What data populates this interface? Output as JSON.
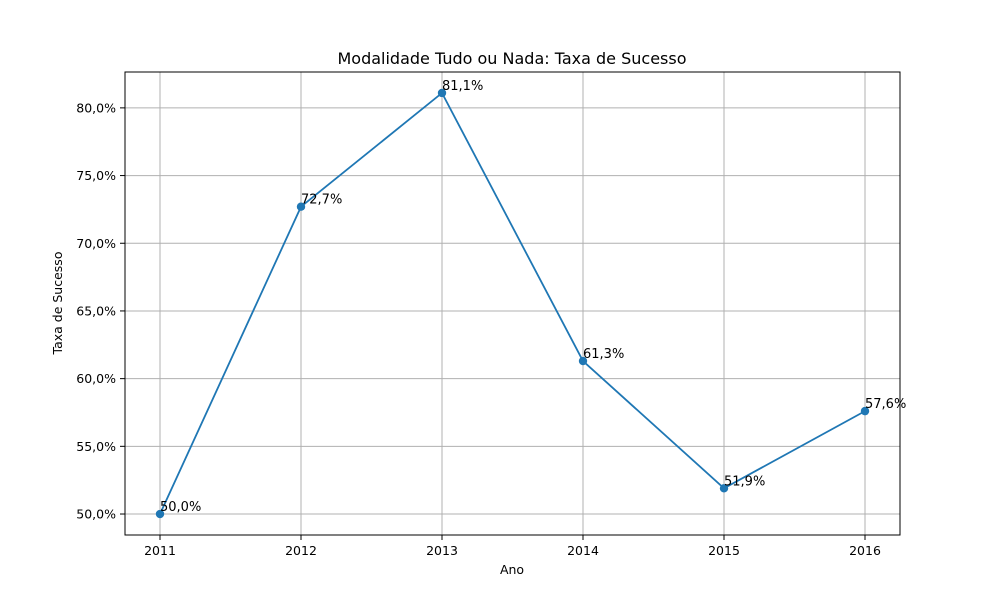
{
  "chart_data": {
    "type": "line",
    "title": "Modalidade Tudo ou Nada: Taxa de Sucesso",
    "xlabel": "Ano",
    "ylabel": "Taxa de Sucesso",
    "categories": [
      "2011",
      "2012",
      "2013",
      "2014",
      "2015",
      "2016"
    ],
    "series": [
      {
        "values": [
          50.0,
          72.7,
          81.1,
          61.3,
          51.9,
          57.6
        ],
        "labels": [
          "50,0%",
          "72,7%",
          "81,1%",
          "61,3%",
          "51,9%",
          "57,6%"
        ],
        "color": "#1f77b4"
      }
    ],
    "ylim": [
      48.45,
      82.65
    ],
    "yticks": [
      50,
      55,
      60,
      65,
      70,
      75,
      80
    ],
    "ytick_labels": [
      "50,0%",
      "55,0%",
      "60,0%",
      "65,0%",
      "70,0%",
      "75,0%",
      "80,0%"
    ],
    "grid": true,
    "legend": "none"
  }
}
